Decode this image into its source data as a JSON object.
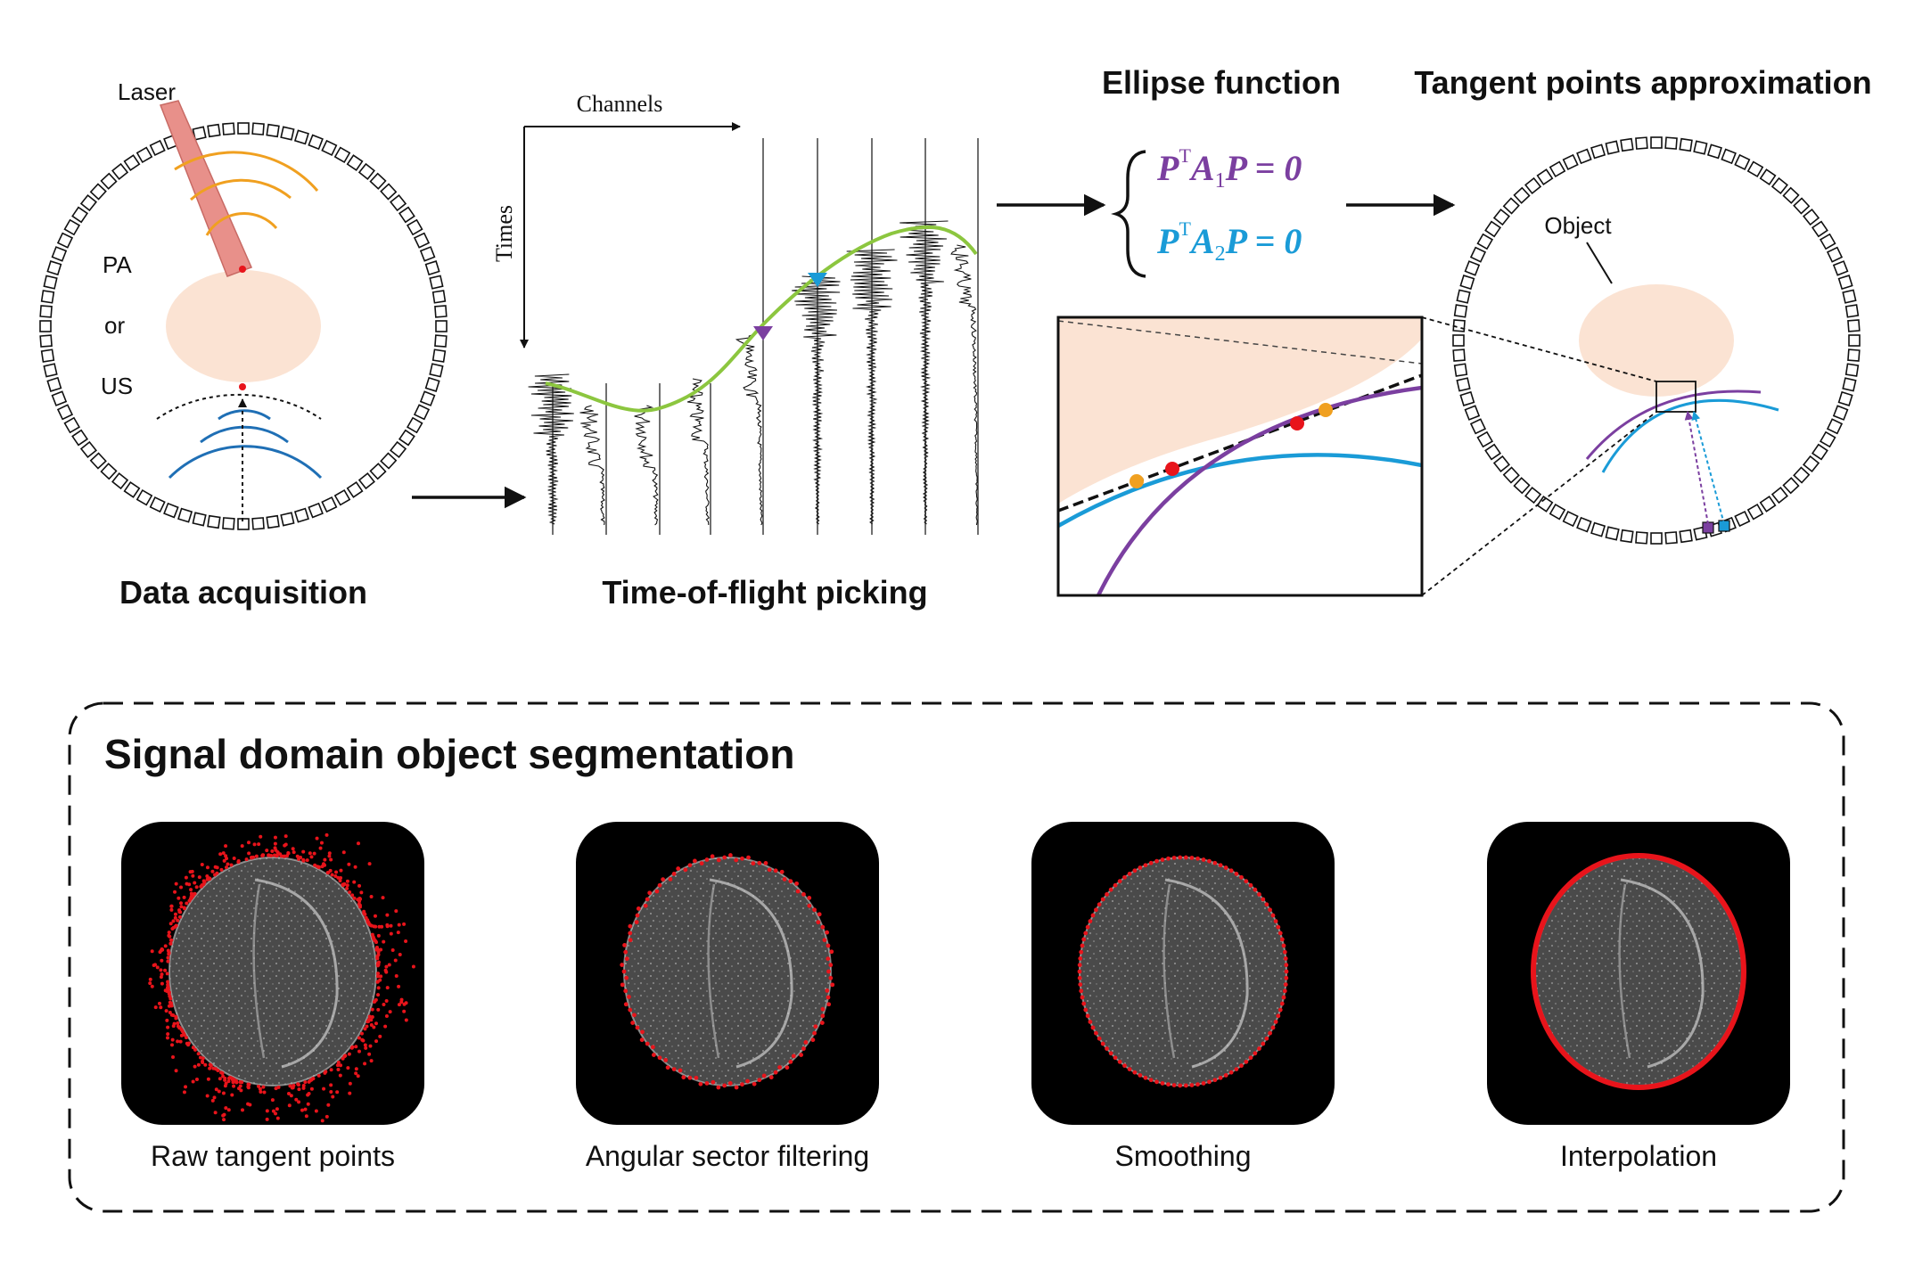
{
  "panels": {
    "data_acquisition": {
      "title": "Data acquisition",
      "laser_label": "Laser",
      "modality": {
        "pa": "PA",
        "or": "or",
        "us": "US"
      }
    },
    "tof_picking": {
      "title": "Time-of-flight picking",
      "x_axis": "Channels",
      "y_axis": "Times"
    },
    "ellipse": {
      "title": "Ellipse function",
      "eq1": {
        "p": "P",
        "sup": "T",
        "a": "A",
        "sub": "1",
        "rest": "P = 0"
      },
      "eq2": {
        "p": "P",
        "sup": "T",
        "a": "A",
        "sub": "2",
        "rest": "P = 0"
      }
    },
    "tangent": {
      "title": "Tangent points approximation",
      "object_label": "Object"
    }
  },
  "segmentation": {
    "title": "Signal domain object segmentation",
    "steps": [
      {
        "label": "Raw tangent points"
      },
      {
        "label": "Angular sector filtering"
      },
      {
        "label": "Smoothing"
      },
      {
        "label": "Interpolation"
      }
    ]
  },
  "colors": {
    "purple": "#7B3FA0",
    "cyan": "#1A9BD7",
    "orange": "#F0A020",
    "red": "#E8141B",
    "blue_wave": "#1F6FB5",
    "green_curve": "#8CC63F",
    "object_fill": "#FBE3D3",
    "laser_fill": "#E8908A"
  },
  "icons": [
    "right-arrow-icon",
    "brace-icon"
  ]
}
